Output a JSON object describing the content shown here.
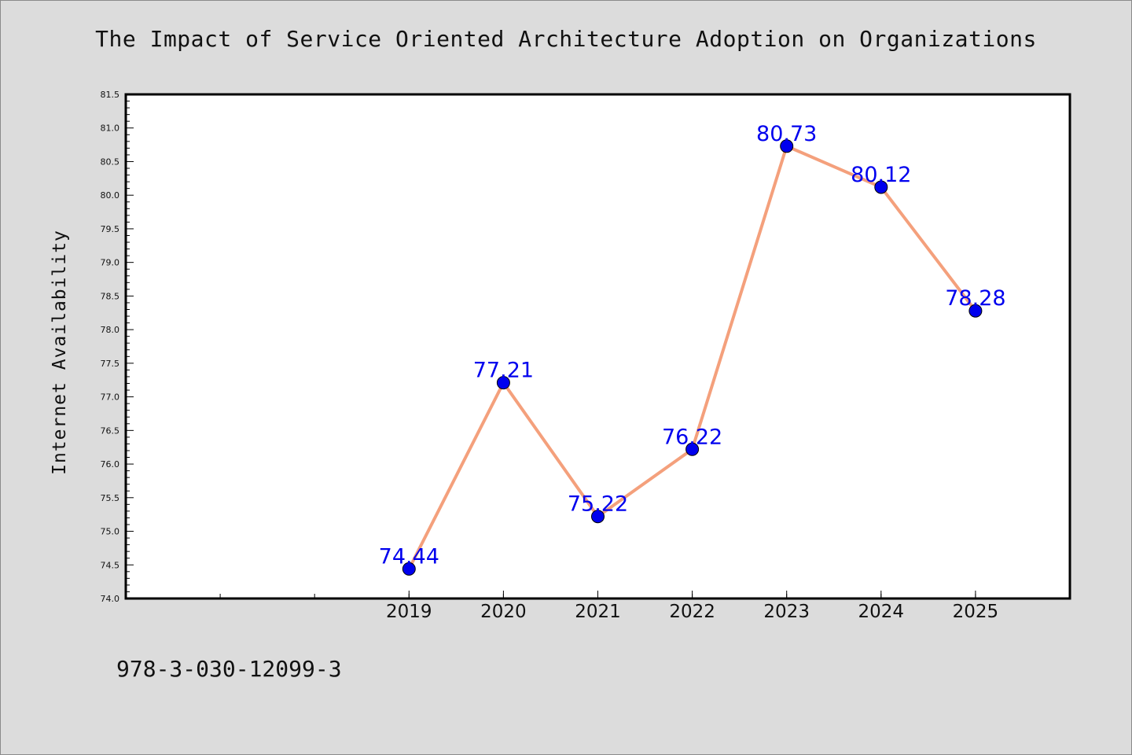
{
  "chart_data": {
    "type": "line",
    "title": "The Impact of Service Oriented Architecture Adoption on Organizations",
    "xlabel": "",
    "ylabel": "Internet Availability",
    "categories": [
      "2019",
      "2020",
      "2021",
      "2022",
      "2023",
      "2024",
      "2025"
    ],
    "series": [
      {
        "values": [
          74.44,
          77.21,
          75.22,
          76.22,
          80.73,
          80.12,
          78.28
        ]
      }
    ],
    "data_labels": [
      "74.44",
      "77.21",
      "75.22",
      "76.22",
      "80.73",
      "80.12",
      "78.28"
    ],
    "ylim": [
      74.0,
      81.5
    ],
    "y_ticks": [
      "74.0",
      "74.5",
      "75.0",
      "75.5",
      "76.0",
      "76.5",
      "77.0",
      "77.5",
      "78.0",
      "78.5",
      "79.0",
      "79.5",
      "80.0",
      "80.5",
      "81.0",
      "81.5"
    ],
    "grid": false,
    "colors": {
      "line": "#f4a07c",
      "marker": "#0000ee",
      "data_label": "#0000ee",
      "plot_background": "#ffffff",
      "page_background": "#dcdcdc"
    }
  },
  "footer": {
    "isbn": "978-3-030-12099-3"
  }
}
